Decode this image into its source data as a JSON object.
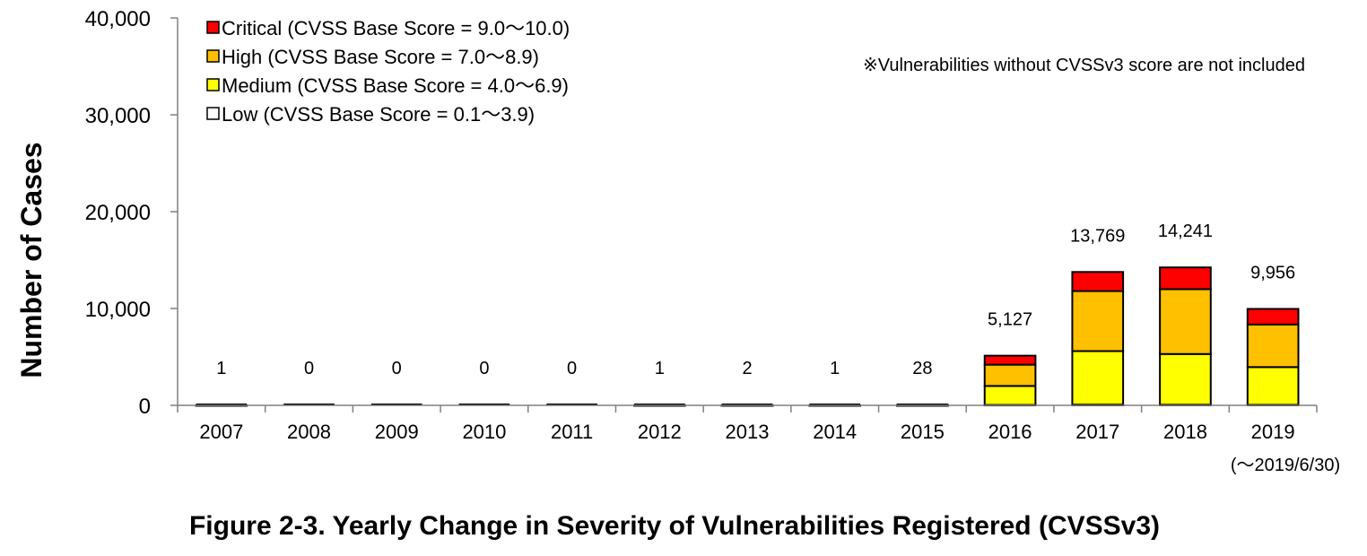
{
  "chart_data": {
    "type": "bar",
    "stacked": true,
    "title": "Figure 2-3.  Yearly Change in Severity of Vulnerabilities Registered (CVSSv3)",
    "ylabel": "Number of Cases",
    "xlabel": "",
    "ylim": [
      0,
      40000
    ],
    "yticks": [
      "0",
      "10,000",
      "20,000",
      "30,000",
      "40,000"
    ],
    "ytick_values": [
      0,
      10000,
      20000,
      30000,
      40000
    ],
    "grid": false,
    "legend_position": "top-left",
    "note": "※Vulnerabilities without CVSSv3 score are not included",
    "categories": [
      "2007",
      "2008",
      "2009",
      "2010",
      "2011",
      "2012",
      "2013",
      "2014",
      "2015",
      "2016",
      "2017",
      "2018",
      "2019"
    ],
    "last_category_note": "(～2019/6/30)",
    "totals": [
      "1",
      "0",
      "0",
      "0",
      "0",
      "1",
      "2",
      "1",
      "28",
      "5,127",
      "13,769",
      "14,241",
      "9,956"
    ],
    "series": [
      {
        "name": "Low (CVSS Base Score = 0.1～3.9)",
        "color": "#ffffff",
        "values": [
          0,
          0,
          0,
          0,
          0,
          0,
          0,
          0,
          1,
          40,
          70,
          60,
          50
        ]
      },
      {
        "name": "Medium (CVSS Base Score = 4.0～6.9)",
        "color": "#ffff00",
        "values": [
          1,
          0,
          0,
          0,
          0,
          1,
          1,
          1,
          15,
          1960,
          5530,
          5240,
          3900
        ]
      },
      {
        "name": "High (CVSS Base Score = 7.0～8.9)",
        "color": "#ffc000",
        "values": [
          0,
          0,
          0,
          0,
          0,
          0,
          1,
          0,
          10,
          2200,
          6200,
          6700,
          4400
        ]
      },
      {
        "name": "Critical (CVSS Base Score = 9.0～10.0)",
        "color": "#ff0000",
        "values": [
          0,
          0,
          0,
          0,
          0,
          0,
          0,
          0,
          2,
          927,
          1969,
          2241,
          1606
        ]
      }
    ],
    "legend_order": [
      3,
      2,
      1,
      0
    ]
  }
}
